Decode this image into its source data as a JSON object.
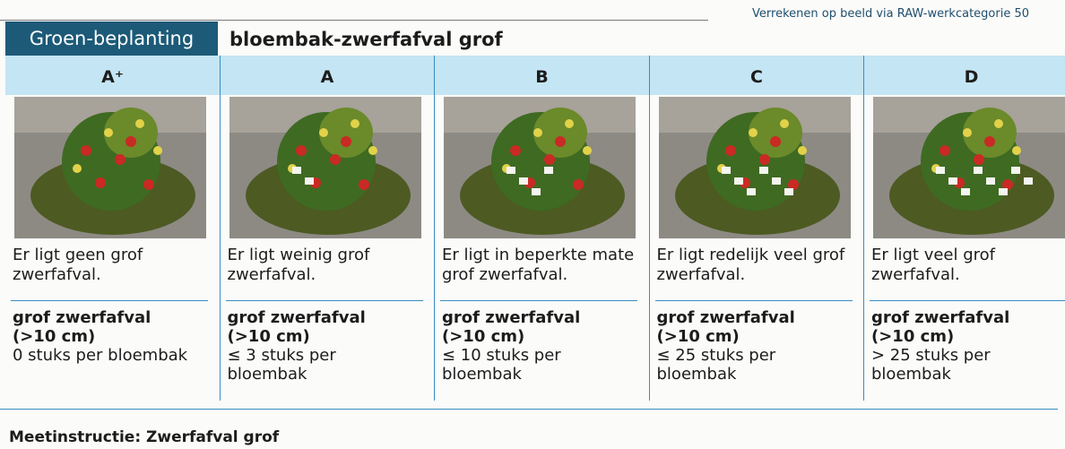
{
  "note": "Verrekenen op beeld via RAW-werkcategorie 50",
  "header": {
    "category": "Groen-beplanting",
    "title": "bloembak-zwerfafval grof"
  },
  "levels": [
    {
      "grade": "A⁺",
      "description": "Er ligt geen grof zwerfafval.",
      "criterion": "grof zwerfafval",
      "size": "(>10 cm)",
      "norm": "0 stuks per bloembak"
    },
    {
      "grade": "A",
      "description": "Er ligt weinig grof zwerfafval.",
      "criterion": "grof zwerfafval",
      "size": "(>10 cm)",
      "norm": "≤ 3 stuks per bloembak"
    },
    {
      "grade": "B",
      "description": "Er ligt in beperkte mate grof zwerfafval.",
      "criterion": "grof zwerfafval",
      "size": "(>10 cm)",
      "norm": "≤ 10 stuks per bloembak"
    },
    {
      "grade": "C",
      "description": "Er ligt redelijk veel grof zwerfafval.",
      "criterion": "grof zwerfafval",
      "size": "(>10 cm)",
      "norm": "≤ 25 stuks per bloembak"
    },
    {
      "grade": "D",
      "description": "Er ligt veel grof zwerfafval.",
      "criterion": "grof zwerfafval",
      "size": "(>10 cm)",
      "norm": "> 25 stuks per bloembak"
    }
  ],
  "footer": "Meetinstructie: Zwerfafval grof"
}
